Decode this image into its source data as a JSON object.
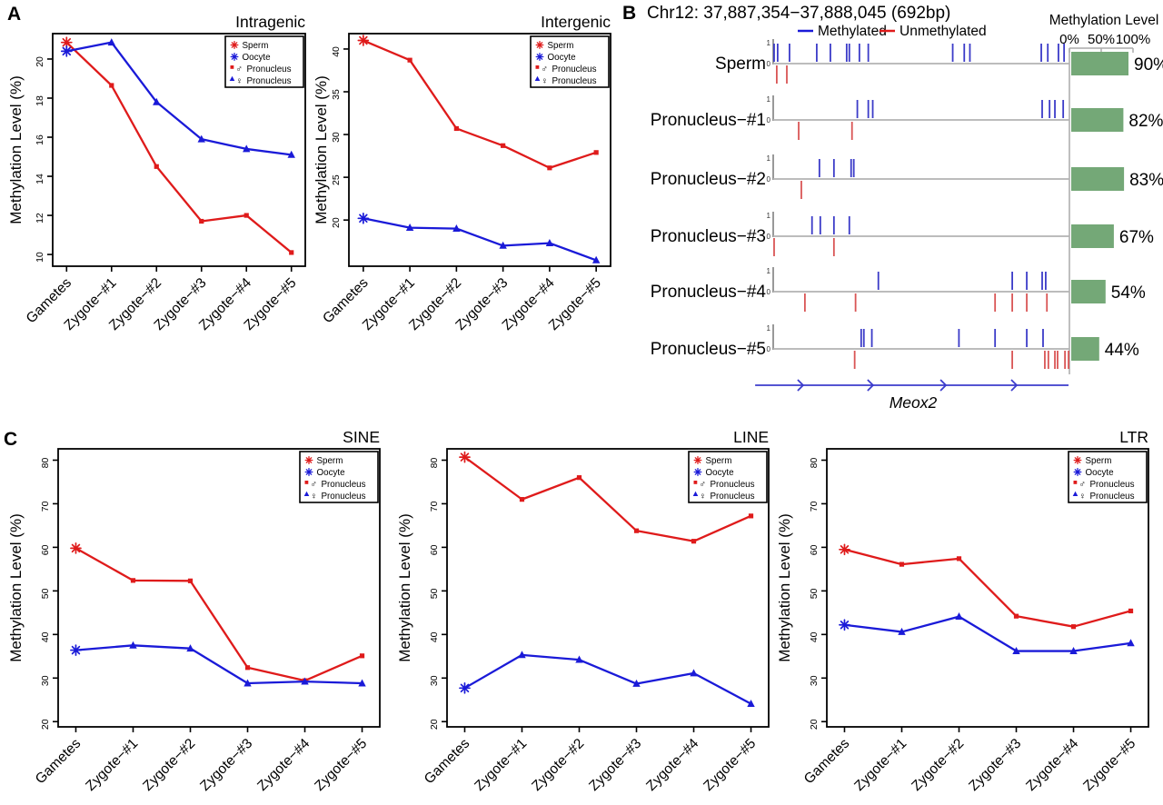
{
  "panel_labels": {
    "a": "A",
    "b": "B",
    "c": "C"
  },
  "colors": {
    "red": "#df1b1b",
    "blue": "#1a1ad8",
    "tick_blue": "#3b3bc8",
    "tick_red": "#d95555",
    "green": "#74a877",
    "gene": "#3c3ccc",
    "track_line": "#b3b3b3",
    "scale_line": "#aaaaaa"
  },
  "ylabel": "Methylation Level (%)",
  "categories": [
    "Gametes",
    "Zygote−#1",
    "Zygote−#2",
    "Zygote−#3",
    "Zygote−#4",
    "Zygote−#5"
  ],
  "plot_legend": [
    {
      "marker": "asterisk",
      "color": "#df1b1b",
      "gender": "",
      "label": "Sperm"
    },
    {
      "marker": "asterisk",
      "color": "#1a1ad8",
      "gender": "",
      "label": "Oocyte"
    },
    {
      "marker": "square",
      "color": "#df1b1b",
      "gender": "♂",
      "label": "Pronucleus"
    },
    {
      "marker": "triangle",
      "color": "#1a1ad8",
      "gender": "♀",
      "label": "Pronucleus"
    }
  ],
  "chart_data": [
    {
      "id": "intragenic",
      "type": "line",
      "title": "Intragenic",
      "xlabel": "",
      "ylabel": "Methylation Level (%)",
      "categories": [
        "Gametes",
        "Zygote−#1",
        "Zygote−#2",
        "Zygote−#3",
        "Zygote−#4",
        "Zygote−#5"
      ],
      "ylim": [
        9.4,
        21.3
      ],
      "yticks": [
        10,
        12,
        14,
        16,
        18,
        20
      ],
      "series": [
        {
          "name": "Sperm → ♂ Pronucleus",
          "color": "#df1b1b",
          "marker": "square",
          "values": [
            20.85,
            18.65,
            14.5,
            11.7,
            12.0,
            10.1
          ]
        },
        {
          "name": "Oocyte → ♀ Pronucleus",
          "color": "#1a1ad8",
          "marker": "triangle",
          "values": [
            20.4,
            20.85,
            17.8,
            15.9,
            15.4,
            15.1
          ]
        }
      ]
    },
    {
      "id": "intergenic",
      "type": "line",
      "title": "Intergenic",
      "xlabel": "",
      "ylabel": "Methylation Level (%)",
      "categories": [
        "Gametes",
        "Zygote−#1",
        "Zygote−#2",
        "Zygote−#3",
        "Zygote−#4",
        "Zygote−#5"
      ],
      "ylim": [
        14.6,
        41.8
      ],
      "yticks": [
        20,
        25,
        30,
        35,
        40
      ],
      "series": [
        {
          "name": "Sperm → ♂ Pronucleus",
          "color": "#df1b1b",
          "marker": "square",
          "values": [
            41.0,
            38.7,
            30.7,
            28.7,
            26.1,
            27.9
          ]
        },
        {
          "name": "Oocyte → ♀ Pronucleus",
          "color": "#1a1ad8",
          "marker": "triangle",
          "values": [
            20.2,
            19.1,
            19.0,
            17.0,
            17.3,
            15.3
          ]
        }
      ]
    },
    {
      "id": "sine",
      "type": "line",
      "title": "SINE",
      "xlabel": "",
      "ylabel": "Methylation Level (%)",
      "categories": [
        "Gametes",
        "Zygote−#1",
        "Zygote−#2",
        "Zygote−#3",
        "Zygote−#4",
        "Zygote−#5"
      ],
      "ylim": [
        18.8,
        82.6
      ],
      "yticks": [
        20,
        30,
        40,
        50,
        60,
        70,
        80
      ],
      "series": [
        {
          "name": "Sperm → ♂ Pronucleus",
          "color": "#df1b1b",
          "marker": "square",
          "values": [
            59.8,
            52.4,
            52.3,
            32.4,
            29.4,
            35.1
          ]
        },
        {
          "name": "Oocyte → ♀ Pronucleus",
          "color": "#1a1ad8",
          "marker": "triangle",
          "values": [
            36.4,
            37.5,
            36.8,
            28.8,
            29.2,
            28.8
          ]
        }
      ]
    },
    {
      "id": "line_rep",
      "type": "line",
      "title": "LINE",
      "xlabel": "",
      "ylabel": "Methylation Level (%)",
      "categories": [
        "Gametes",
        "Zygote−#1",
        "Zygote−#2",
        "Zygote−#3",
        "Zygote−#4",
        "Zygote−#5"
      ],
      "ylim": [
        18.8,
        82.6
      ],
      "yticks": [
        20,
        30,
        40,
        50,
        60,
        70,
        80
      ],
      "series": [
        {
          "name": "Sperm → ♂ Pronucleus",
          "color": "#df1b1b",
          "marker": "square",
          "values": [
            80.7,
            71.0,
            76.0,
            63.8,
            61.4,
            67.2
          ]
        },
        {
          "name": "Oocyte → ♀ Pronucleus",
          "color": "#1a1ad8",
          "marker": "triangle",
          "values": [
            27.7,
            35.3,
            34.2,
            28.7,
            31.1,
            24.1
          ]
        }
      ]
    },
    {
      "id": "ltr",
      "type": "line",
      "title": "LTR",
      "xlabel": "",
      "ylabel": "Methylation Level (%)",
      "categories": [
        "Gametes",
        "Zygote−#1",
        "Zygote−#2",
        "Zygote−#3",
        "Zygote−#4",
        "Zygote−#5"
      ],
      "ylim": [
        18.8,
        82.6
      ],
      "yticks": [
        20,
        30,
        40,
        50,
        60,
        70,
        80
      ],
      "series": [
        {
          "name": "Sperm → ♂ Pronucleus",
          "color": "#df1b1b",
          "marker": "square",
          "values": [
            59.5,
            56.1,
            57.4,
            44.2,
            41.8,
            45.4
          ]
        },
        {
          "name": "Oocyte → ♀ Pronucleus",
          "color": "#1a1ad8",
          "marker": "triangle",
          "values": [
            42.2,
            40.6,
            44.1,
            36.2,
            36.2,
            38.0
          ]
        }
      ]
    },
    {
      "id": "b_tracks",
      "type": "methylation-tracks",
      "title": "Chr12: 37,887,354−37,888,045 (692bp)",
      "legend": {
        "methylated": "Methylated",
        "unmethylated": "Unmethylated"
      },
      "scale": {
        "title": "Methylation Level",
        "ticks": [
          "0%",
          "50%",
          "100%"
        ]
      },
      "track_axis": {
        "top": "1",
        "bottom": "0"
      },
      "gene": {
        "name": "Meox2",
        "start_frac": -0.061,
        "end_frac": 0.997,
        "chevron_fracs": [
          0.101,
          0.337,
          0.583,
          0.822
        ]
      },
      "tracks": [
        {
          "name": "Sperm",
          "percent": 90,
          "percent_label": "90%",
          "methylated": [
            0.003,
            0.015,
            0.055,
            0.147,
            0.193,
            0.248,
            0.257,
            0.291,
            0.321,
            0.606,
            0.645,
            0.664,
            0.905,
            0.927,
            0.963,
            0.982
          ],
          "unmethylated": [
            0.012,
            0.046
          ]
        },
        {
          "name": "Pronucleus−#1",
          "percent": 82,
          "percent_label": "82%",
          "methylated": [
            0.284,
            0.321,
            0.336,
            0.908,
            0.933,
            0.951,
            0.979
          ],
          "unmethylated": [
            0.086,
            0.266
          ]
        },
        {
          "name": "Pronucleus−#2",
          "percent": 83,
          "percent_label": "83%",
          "methylated": [
            0.156,
            0.205,
            0.263,
            0.272
          ],
          "unmethylated": [
            0.095
          ]
        },
        {
          "name": "Pronucleus−#3",
          "percent": 67,
          "percent_label": "67%",
          "methylated": [
            0.131,
            0.159,
            0.205,
            0.257
          ],
          "unmethylated": [
            0.003,
            0.205
          ]
        },
        {
          "name": "Pronucleus−#4",
          "percent": 54,
          "percent_label": "54%",
          "methylated": [
            0.355,
            0.807,
            0.856,
            0.908,
            0.92
          ],
          "unmethylated": [
            0.107,
            0.278,
            0.749,
            0.807,
            0.856,
            0.924
          ]
        },
        {
          "name": "Pronucleus−#5",
          "percent": 44,
          "percent_label": "44%",
          "methylated": [
            0.297,
            0.306,
            0.333,
            0.627,
            0.749,
            0.856,
            0.911
          ],
          "unmethylated": [
            0.275,
            0.807,
            0.917,
            0.929,
            0.951,
            0.96,
            0.985,
            0.997
          ]
        }
      ]
    }
  ]
}
